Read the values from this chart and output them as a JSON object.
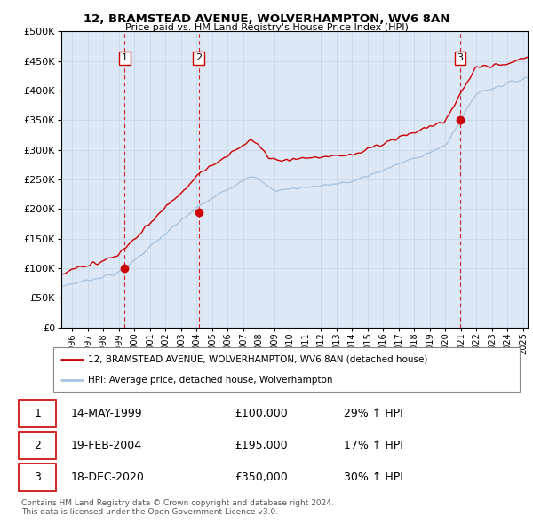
{
  "title": "12, BRAMSTEAD AVENUE, WOLVERHAMPTON, WV6 8AN",
  "subtitle": "Price paid vs. HM Land Registry's House Price Index (HPI)",
  "ylabel_ticks": [
    "£0",
    "£50K",
    "£100K",
    "£150K",
    "£200K",
    "£250K",
    "£300K",
    "£350K",
    "£400K",
    "£450K",
    "£500K"
  ],
  "ytick_values": [
    0,
    50000,
    100000,
    150000,
    200000,
    250000,
    300000,
    350000,
    400000,
    450000,
    500000
  ],
  "xlim_start": 1995.3,
  "xlim_end": 2025.3,
  "ylim_min": 0,
  "ylim_max": 500000,
  "sale_dates": [
    1999.37,
    2004.13,
    2020.96
  ],
  "sale_prices": [
    100000,
    195000,
    350000
  ],
  "sale_labels": [
    "1",
    "2",
    "3"
  ],
  "hpi_color": "#a8c4e0",
  "price_color": "#cc0000",
  "marker_color": "#cc0000",
  "vline_color": "#cc0000",
  "plot_bg_color": "#dce8f5",
  "legend_line1": "12, BRAMSTEAD AVENUE, WOLVERHAMPTON, WV6 8AN (detached house)",
  "legend_line2": "HPI: Average price, detached house, Wolverhampton",
  "table_rows": [
    [
      "1",
      "14-MAY-1999",
      "£100,000",
      "29% ↑ HPI"
    ],
    [
      "2",
      "19-FEB-2004",
      "£195,000",
      "17% ↑ HPI"
    ],
    [
      "3",
      "18-DEC-2020",
      "£350,000",
      "30% ↑ HPI"
    ]
  ],
  "footnote1": "Contains HM Land Registry data © Crown copyright and database right 2024.",
  "footnote2": "This data is licensed under the Open Government Licence v3.0.",
  "background_color": "#ffffff",
  "grid_color": "#c8d8e8"
}
